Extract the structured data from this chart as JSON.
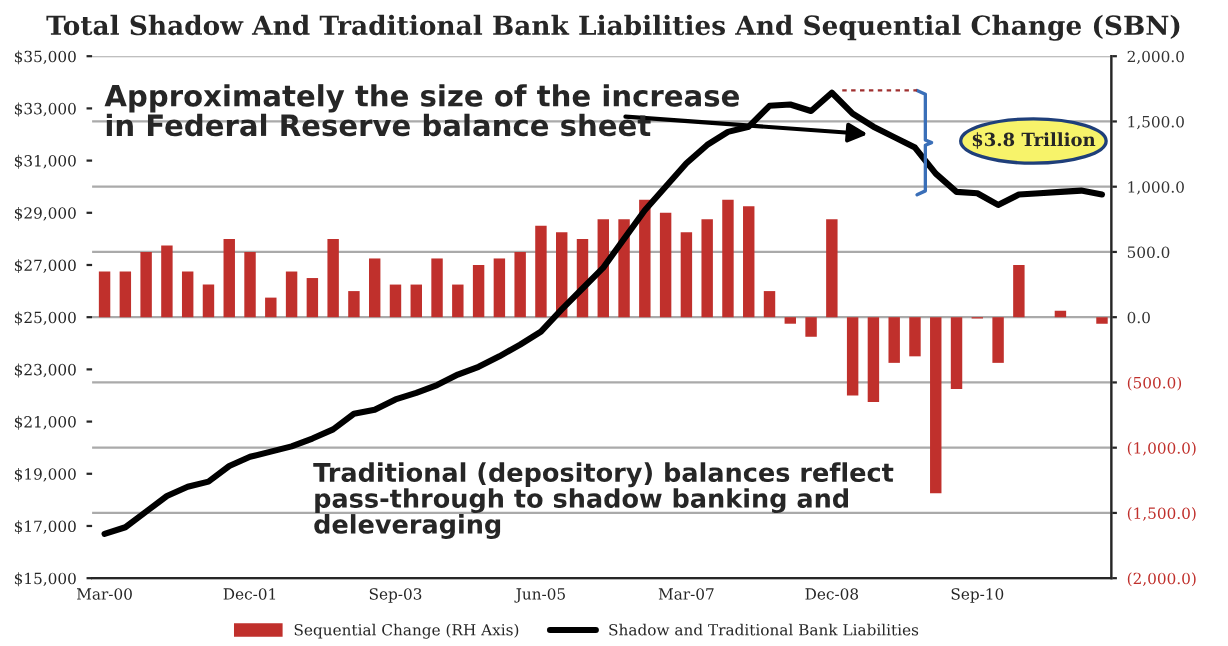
{
  "chart_data": {
    "type": "bar",
    "title": "Total Shadow And Traditional Bank Liabilities And Sequential Change (SBN)",
    "categories": [
      "Mar-00",
      null,
      null,
      null,
      null,
      null,
      null,
      "Dec-01",
      null,
      null,
      null,
      null,
      null,
      null,
      "Sep-03",
      null,
      null,
      null,
      null,
      null,
      null,
      "Jun-05",
      null,
      null,
      null,
      null,
      null,
      null,
      "Mar-07",
      null,
      null,
      null,
      null,
      null,
      null,
      "Dec-08",
      null,
      null,
      null,
      null,
      null,
      null,
      "Sep-10",
      null,
      null,
      null,
      null,
      null,
      null
    ],
    "series": [
      {
        "name": "Sequential Change (RH Axis)",
        "axis": "y2",
        "color": "#c0302c",
        "values": [
          350,
          350,
          500,
          550,
          350,
          250,
          600,
          500,
          150,
          350,
          300,
          600,
          200,
          450,
          250,
          250,
          450,
          250,
          400,
          450,
          500,
          700,
          650,
          600,
          750,
          750,
          900,
          800,
          650,
          750,
          900,
          850,
          200,
          -50,
          -150,
          750,
          -600,
          -650,
          -350,
          -300,
          -1350,
          -550,
          -10,
          -350,
          400,
          0,
          50,
          0,
          -50
        ]
      },
      {
        "name": "Shadow and Traditional Bank Liabilities",
        "type": "line",
        "color": "#000000",
        "values": [
          16700,
          16950,
          17550,
          18150,
          18500,
          18700,
          19300,
          19650,
          19850,
          20050,
          20350,
          20700,
          21300,
          21450,
          21850,
          22100,
          22400,
          22800,
          23100,
          23500,
          23950,
          24450,
          25300,
          26100,
          26900,
          28000,
          29100,
          30000,
          30900,
          31600,
          32100,
          32300,
          33100,
          33150,
          32900,
          33600,
          32800,
          32300,
          31900,
          31500,
          30500,
          29800,
          29750,
          29300,
          29700,
          29750,
          29800,
          29850,
          29700
        ]
      }
    ],
    "ylim": [
      15000,
      35000
    ],
    "yticks": [
      {
        "value": 15000,
        "label": "$15,000"
      },
      {
        "value": 17000,
        "label": "$17,000"
      },
      {
        "value": 19000,
        "label": "$19,000"
      },
      {
        "value": 21000,
        "label": "$21,000"
      },
      {
        "value": 23000,
        "label": "$23,000"
      },
      {
        "value": 25000,
        "label": "$25,000"
      },
      {
        "value": 27000,
        "label": "$27,000"
      },
      {
        "value": 29000,
        "label": "$29,000"
      },
      {
        "value": 31000,
        "label": "$31,000"
      },
      {
        "value": 33000,
        "label": "$33,000"
      },
      {
        "value": 35000,
        "label": "$35,000"
      }
    ],
    "y2lim": [
      -2000,
      2000
    ],
    "y2ticks": [
      {
        "value": -2000,
        "label": "(2,000.0)"
      },
      {
        "value": -1500,
        "label": "(1,500.0)"
      },
      {
        "value": -1000,
        "label": "(1,000.0)"
      },
      {
        "value": -500,
        "label": "(500.0)"
      },
      {
        "value": 0,
        "label": "0.0"
      },
      {
        "value": 500,
        "label": "500.0"
      },
      {
        "value": 1000,
        "label": "1,000.0"
      },
      {
        "value": 1500,
        "label": "1,500.0"
      },
      {
        "value": 2000,
        "label": "2,000.0"
      }
    ],
    "annotations": [
      "Approximately the size of the increase\nin Federal Reserve balance sheet",
      "$3.8 Trillion",
      "Traditional (depository) balances reflect\npass-through to shadow banking and\ndeleveraging"
    ],
    "grid": "y",
    "legend": "bottom"
  }
}
